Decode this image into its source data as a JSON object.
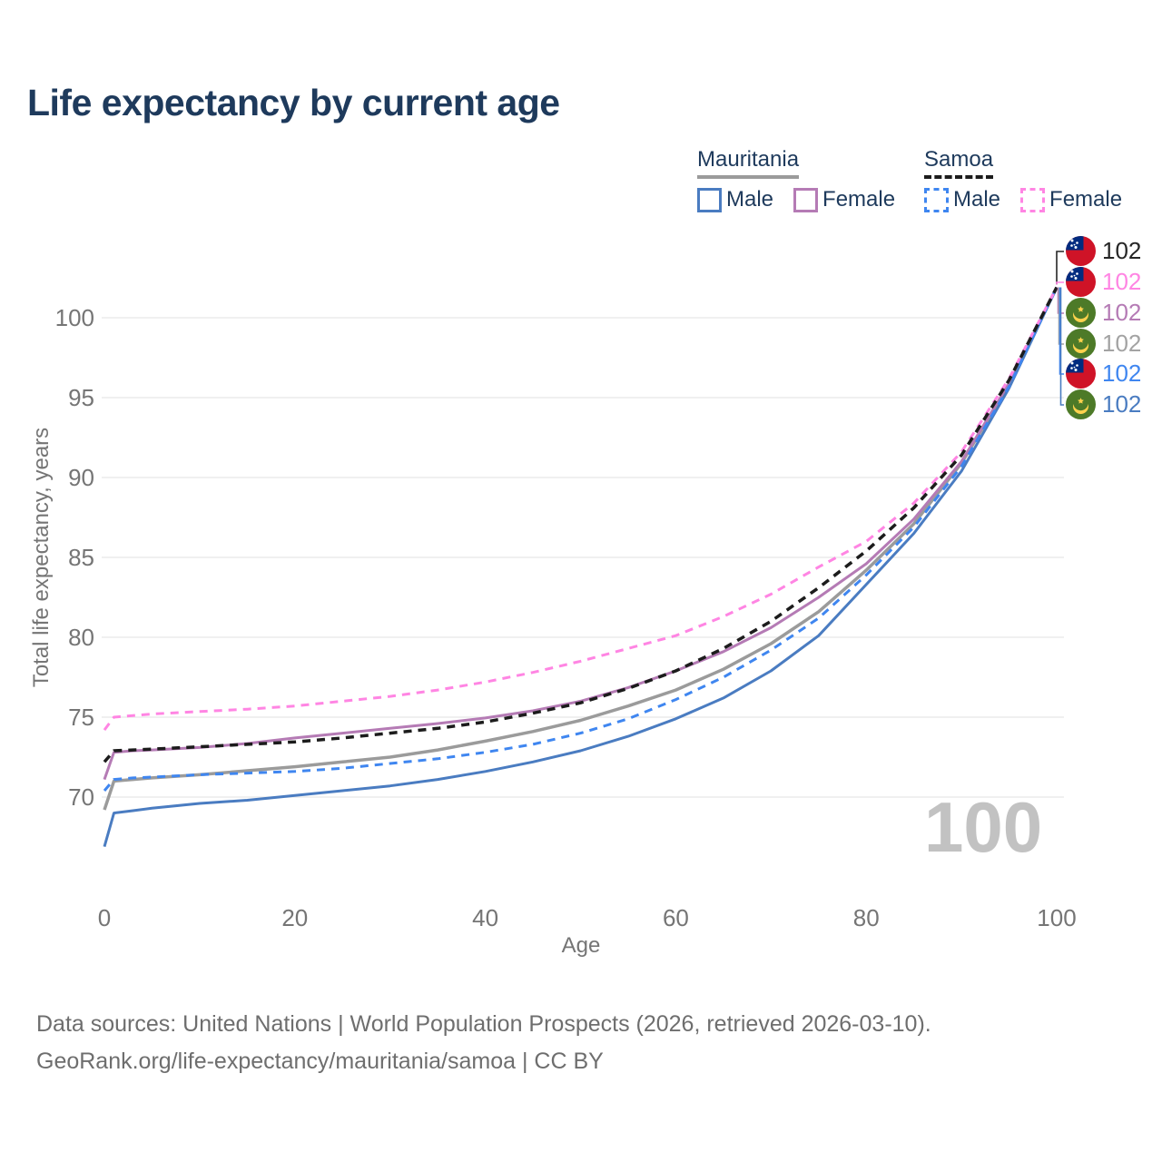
{
  "title": "Life expectancy by current age",
  "legend": {
    "groups": [
      {
        "name": "Mauritania",
        "line_style": "solid",
        "rule_color": "#9b9b9b",
        "items": [
          {
            "label": "Male",
            "color": "#4a7cc1"
          },
          {
            "label": "Female",
            "color": "#b57bb5"
          }
        ]
      },
      {
        "name": "Samoa",
        "line_style": "dashed",
        "rule_color": "#1c1c1c",
        "items": [
          {
            "label": "Male",
            "color": "#3f86f0"
          },
          {
            "label": "Female",
            "color": "#ff85e3"
          }
        ]
      }
    ]
  },
  "axes": {
    "y_title": "Total life expectancy, years",
    "x_title": "Age",
    "y_ticks": [
      70,
      75,
      80,
      85,
      90,
      95,
      100
    ],
    "x_ticks": [
      0,
      20,
      40,
      60,
      80,
      100
    ],
    "grid_color": "#ececec",
    "tick_color": "#757575"
  },
  "age_counter": "100",
  "end_labels": [
    {
      "value": "102",
      "flag": "samoa",
      "color": "#262626",
      "series": "samoa-both"
    },
    {
      "value": "102",
      "flag": "samoa",
      "color": "#ff85e3",
      "series": "samoa-female"
    },
    {
      "value": "102",
      "flag": "mauritania",
      "color": "#b57bb5",
      "series": "mauritania-female"
    },
    {
      "value": "102",
      "flag": "mauritania",
      "color": "#a3a3a3",
      "series": "mauritania-both"
    },
    {
      "value": "102",
      "flag": "samoa",
      "color": "#3f86f0",
      "series": "samoa-male"
    },
    {
      "value": "102",
      "flag": "mauritania",
      "color": "#4a7cc1",
      "series": "mauritania-male"
    }
  ],
  "flag_colors": {
    "samoa_red": "#cf1327",
    "samoa_blue": "#002b7f",
    "samoa_star": "#ffffff",
    "mauritania_green": "#4d7a28",
    "mauritania_yellow": "#ffd24d"
  },
  "footer": {
    "line1": "Data sources: United Nations | World Population Prospects (2026, retrieved 2026-03-10).",
    "line2": "GeoRank.org/life-expectancy/mauritania/samoa | CC BY"
  },
  "chart_data": {
    "type": "line",
    "title": "Life expectancy by current age",
    "xlabel": "Age",
    "ylabel": "Total life expectancy, years",
    "xlim": [
      0,
      100
    ],
    "ylim": [
      66.5,
      103
    ],
    "grid": true,
    "x": [
      0,
      1,
      3,
      5,
      10,
      15,
      20,
      25,
      30,
      35,
      40,
      45,
      50,
      55,
      60,
      65,
      70,
      75,
      80,
      85,
      90,
      95,
      100
    ],
    "series": [
      {
        "id": "mauritania-both",
        "name": "Mauritania (both sexes)",
        "color": "#9b9b9b",
        "dash": false,
        "width": 3.5,
        "values": [
          69.2,
          71.0,
          71.1,
          71.2,
          71.4,
          71.65,
          71.9,
          72.2,
          72.5,
          72.95,
          73.5,
          74.1,
          74.8,
          75.7,
          76.7,
          78.0,
          79.6,
          81.6,
          84.2,
          87.1,
          90.9,
          95.8,
          101.9
        ]
      },
      {
        "id": "mauritania-female",
        "name": "Mauritania Female",
        "color": "#b57bb5",
        "dash": false,
        "width": 3,
        "values": [
          71.1,
          72.8,
          72.9,
          72.95,
          73.1,
          73.35,
          73.7,
          74.0,
          74.3,
          74.6,
          74.95,
          75.4,
          76.0,
          76.85,
          77.9,
          79.1,
          80.6,
          82.5,
          84.6,
          87.4,
          91.0,
          95.9,
          101.9
        ]
      },
      {
        "id": "mauritania-male",
        "name": "Mauritania Male",
        "color": "#4a7cc1",
        "dash": false,
        "width": 3,
        "values": [
          66.9,
          69.0,
          69.15,
          69.3,
          69.6,
          69.8,
          70.1,
          70.4,
          70.7,
          71.1,
          71.6,
          72.2,
          72.9,
          73.8,
          74.9,
          76.2,
          77.9,
          80.1,
          83.3,
          86.5,
          90.4,
          95.6,
          101.9
        ]
      },
      {
        "id": "samoa-male",
        "name": "Samoa Male",
        "color": "#3f86f0",
        "dash": true,
        "width": 3,
        "values": [
          70.4,
          71.1,
          71.2,
          71.25,
          71.4,
          71.5,
          71.6,
          71.8,
          72.1,
          72.4,
          72.8,
          73.3,
          74.0,
          74.9,
          76.1,
          77.5,
          79.2,
          81.2,
          83.9,
          86.9,
          90.7,
          95.7,
          101.9
        ]
      },
      {
        "id": "samoa-female",
        "name": "Samoa Female",
        "color": "#ff85e3",
        "dash": true,
        "width": 3,
        "values": [
          74.2,
          75.0,
          75.1,
          75.2,
          75.35,
          75.5,
          75.7,
          76.0,
          76.3,
          76.7,
          77.2,
          77.8,
          78.5,
          79.3,
          80.1,
          81.3,
          82.7,
          84.4,
          86.0,
          88.4,
          91.6,
          96.2,
          101.9
        ]
      },
      {
        "id": "samoa-both",
        "name": "Samoa (both sexes)",
        "color": "#1c1c1c",
        "dash": true,
        "width": 3.5,
        "values": [
          72.2,
          72.9,
          72.95,
          73.0,
          73.15,
          73.3,
          73.45,
          73.7,
          74.0,
          74.3,
          74.7,
          75.25,
          75.9,
          76.8,
          77.9,
          79.3,
          81.0,
          83.1,
          85.4,
          88.1,
          91.4,
          96.1,
          101.9
        ]
      }
    ]
  }
}
